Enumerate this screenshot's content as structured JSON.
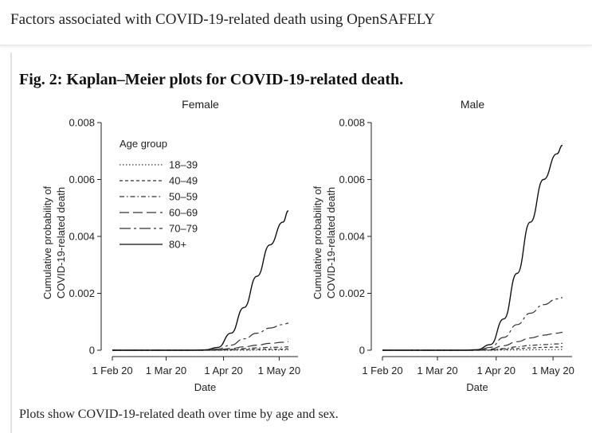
{
  "header": {
    "title": "Factors associated with COVID-19-related death using OpenSAFELY"
  },
  "figure": {
    "title": "Fig. 2: Kaplan–Meier plots for COVID-19-related death.",
    "caption": "Plots show COVID-19-related death over time by age and sex."
  },
  "chart_data": [
    {
      "type": "line",
      "title": "Female",
      "xlabel": "Date",
      "ylabel": "Cumulative probability of COVID-19-related death",
      "x_ticks": [
        "1 Feb 20",
        "1 Mar 20",
        "1 Apr 20",
        "1 May 20"
      ],
      "y_ticks": [
        "0",
        "0.002",
        "0.004",
        "0.006",
        "0.008"
      ],
      "ylim": [
        0,
        0.008
      ],
      "x": [
        "1 Feb 20",
        "15 Feb 20",
        "1 Mar 20",
        "8 Mar 20",
        "15 Mar 20",
        "22 Mar 20",
        "29 Mar 20",
        "5 Apr 20",
        "12 Apr 20",
        "19 Apr 20",
        "26 Apr 20",
        "3 May 20",
        "6 May 20"
      ],
      "legend": {
        "title": "Age group",
        "position": "top-left"
      },
      "series": [
        {
          "name": "18–39",
          "dash": "1.5 2.5",
          "values": [
            0,
            0,
            0,
            0,
            0,
            0,
            0,
            0,
            3e-06,
            5e-06,
            6e-06,
            7e-06,
            8e-06
          ]
        },
        {
          "name": "40–49",
          "dash": "4 3",
          "values": [
            0,
            0,
            0,
            0,
            0,
            0,
            0,
            1e-05,
            2e-05,
            3e-05,
            4e-05,
            4e-05,
            5e-05
          ]
        },
        {
          "name": "50–59",
          "dash": "6 3 1.5 3",
          "values": [
            0,
            0,
            0,
            0,
            0,
            0,
            5e-06,
            3e-05,
            6e-05,
            8e-05,
            0.0001,
            0.00011,
            0.00012
          ]
        },
        {
          "name": "60–69",
          "dash": "12 5",
          "values": [
            0,
            0,
            0,
            0,
            0,
            0,
            1e-05,
            6e-05,
            0.00012,
            0.00018,
            0.00024,
            0.00028,
            0.0003
          ]
        },
        {
          "name": "70–79",
          "dash": "14 4 3 4",
          "values": [
            0,
            0,
            0,
            0,
            0,
            0,
            4e-05,
            0.00018,
            0.0004,
            0.0006,
            0.00078,
            0.0009,
            0.00095
          ]
        },
        {
          "name": "80+",
          "dash": "",
          "values": [
            0,
            0,
            0,
            0,
            0,
            1e-05,
            0.0001,
            0.0006,
            0.0015,
            0.0026,
            0.0037,
            0.0045,
            0.0049
          ]
        }
      ]
    },
    {
      "type": "line",
      "title": "Male",
      "xlabel": "Date",
      "ylabel": "Cumulative probability of COVID-19-related death",
      "x_ticks": [
        "1 Feb 20",
        "1 Mar 20",
        "1 Apr 20",
        "1 May 20"
      ],
      "y_ticks": [
        "0",
        "0.002",
        "0.004",
        "0.006",
        "0.008"
      ],
      "ylim": [
        0,
        0.008
      ],
      "x": [
        "1 Feb 20",
        "15 Feb 20",
        "1 Mar 20",
        "8 Mar 20",
        "15 Mar 20",
        "22 Mar 20",
        "29 Mar 20",
        "5 Apr 20",
        "12 Apr 20",
        "19 Apr 20",
        "26 Apr 20",
        "3 May 20",
        "6 May 20"
      ],
      "series": [
        {
          "name": "18–39",
          "dash": "1.5 2.5",
          "values": [
            0,
            0,
            0,
            0,
            0,
            0,
            0,
            5e-06,
            1e-05,
            1.5e-05,
            2e-05,
            2e-05,
            2.5e-05
          ]
        },
        {
          "name": "40–49",
          "dash": "4 3",
          "values": [
            0,
            0,
            0,
            0,
            0,
            0,
            5e-06,
            3e-05,
            6e-05,
            8e-05,
            0.0001,
            0.00011,
            0.00012
          ]
        },
        {
          "name": "50–59",
          "dash": "6 3 1.5 3",
          "values": [
            0,
            0,
            0,
            0,
            0,
            0,
            1e-05,
            6e-05,
            0.00012,
            0.00017,
            0.0002,
            0.00022,
            0.00024
          ]
        },
        {
          "name": "60–69",
          "dash": "12 5",
          "values": [
            0,
            0,
            0,
            0,
            0,
            0,
            4e-05,
            0.00016,
            0.0003,
            0.00043,
            0.00053,
            0.0006,
            0.00063
          ]
        },
        {
          "name": "70–79",
          "dash": "14 4 3 4",
          "values": [
            0,
            0,
            0,
            0,
            0,
            0,
            0.0001,
            0.00045,
            0.0009,
            0.0013,
            0.0016,
            0.0018,
            0.00185
          ]
        },
        {
          "name": "80+",
          "dash": "",
          "values": [
            0,
            0,
            0,
            0,
            0,
            2e-05,
            0.0002,
            0.0011,
            0.0027,
            0.0045,
            0.006,
            0.0069,
            0.0072
          ]
        }
      ]
    }
  ]
}
